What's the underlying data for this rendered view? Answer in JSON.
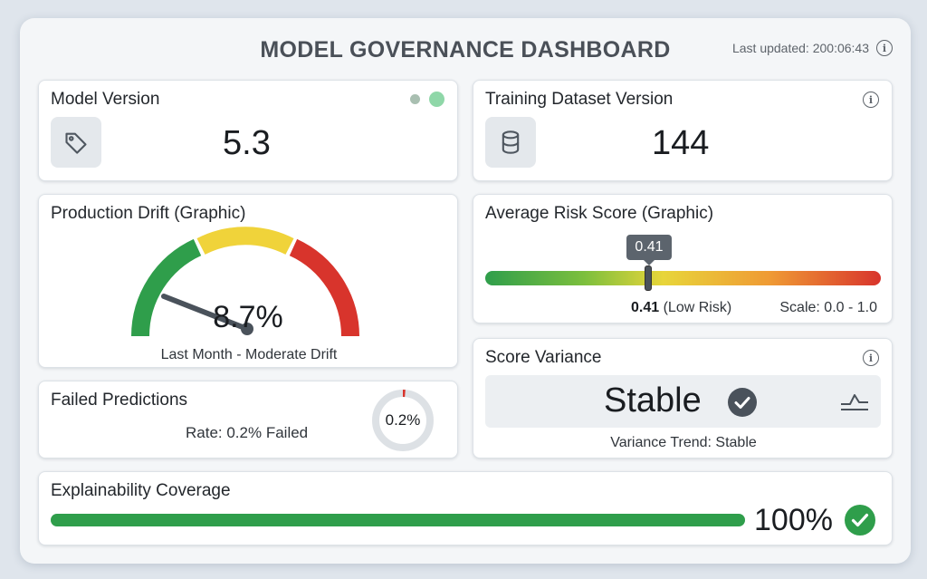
{
  "header": {
    "title": "MODEL GOVERNANCE DASHBOARD",
    "last_updated": "Last updated: 200:06:43",
    "info_icon": "info-icon"
  },
  "model_version": {
    "title": "Model Version",
    "value": "5.3",
    "icon": "tag-icon",
    "status_dots": [
      "#a9bfb1",
      "#8fd7a8"
    ]
  },
  "dataset_version": {
    "title": "Training Dataset Version",
    "value": "144",
    "icon": "database-icon"
  },
  "drift": {
    "title": "Production Drift (Graphic)",
    "value": "8.7%",
    "level": 8.7,
    "caption": "Last Month - Moderate Drift",
    "zones": [
      "#2f9e4b",
      "#f0d33a",
      "#d8342c"
    ]
  },
  "risk": {
    "title": "Average Risk Score (Graphic)",
    "value": 0.41,
    "tooltip": "0.41",
    "label_value": "0.41",
    "label_text": "(Low Risk)",
    "scale": "Scale: 0.0 - 1.0"
  },
  "failed": {
    "title": "Failed Predictions",
    "rate": "Rate: 0.2% Failed",
    "donut_label": "0.2%",
    "fraction": 0.002
  },
  "variance": {
    "title": "Score Variance",
    "status": "Stable",
    "caption": "Variance Trend: Stable",
    "icon": "check-circle-icon",
    "trend_icon": "trend-icon"
  },
  "coverage": {
    "title": "Explainability Coverage",
    "value": "100%",
    "percent": 100,
    "icon": "check-circle-icon"
  },
  "colors": {
    "accent_green": "#2f9e4b",
    "dark": "#4a525b"
  }
}
